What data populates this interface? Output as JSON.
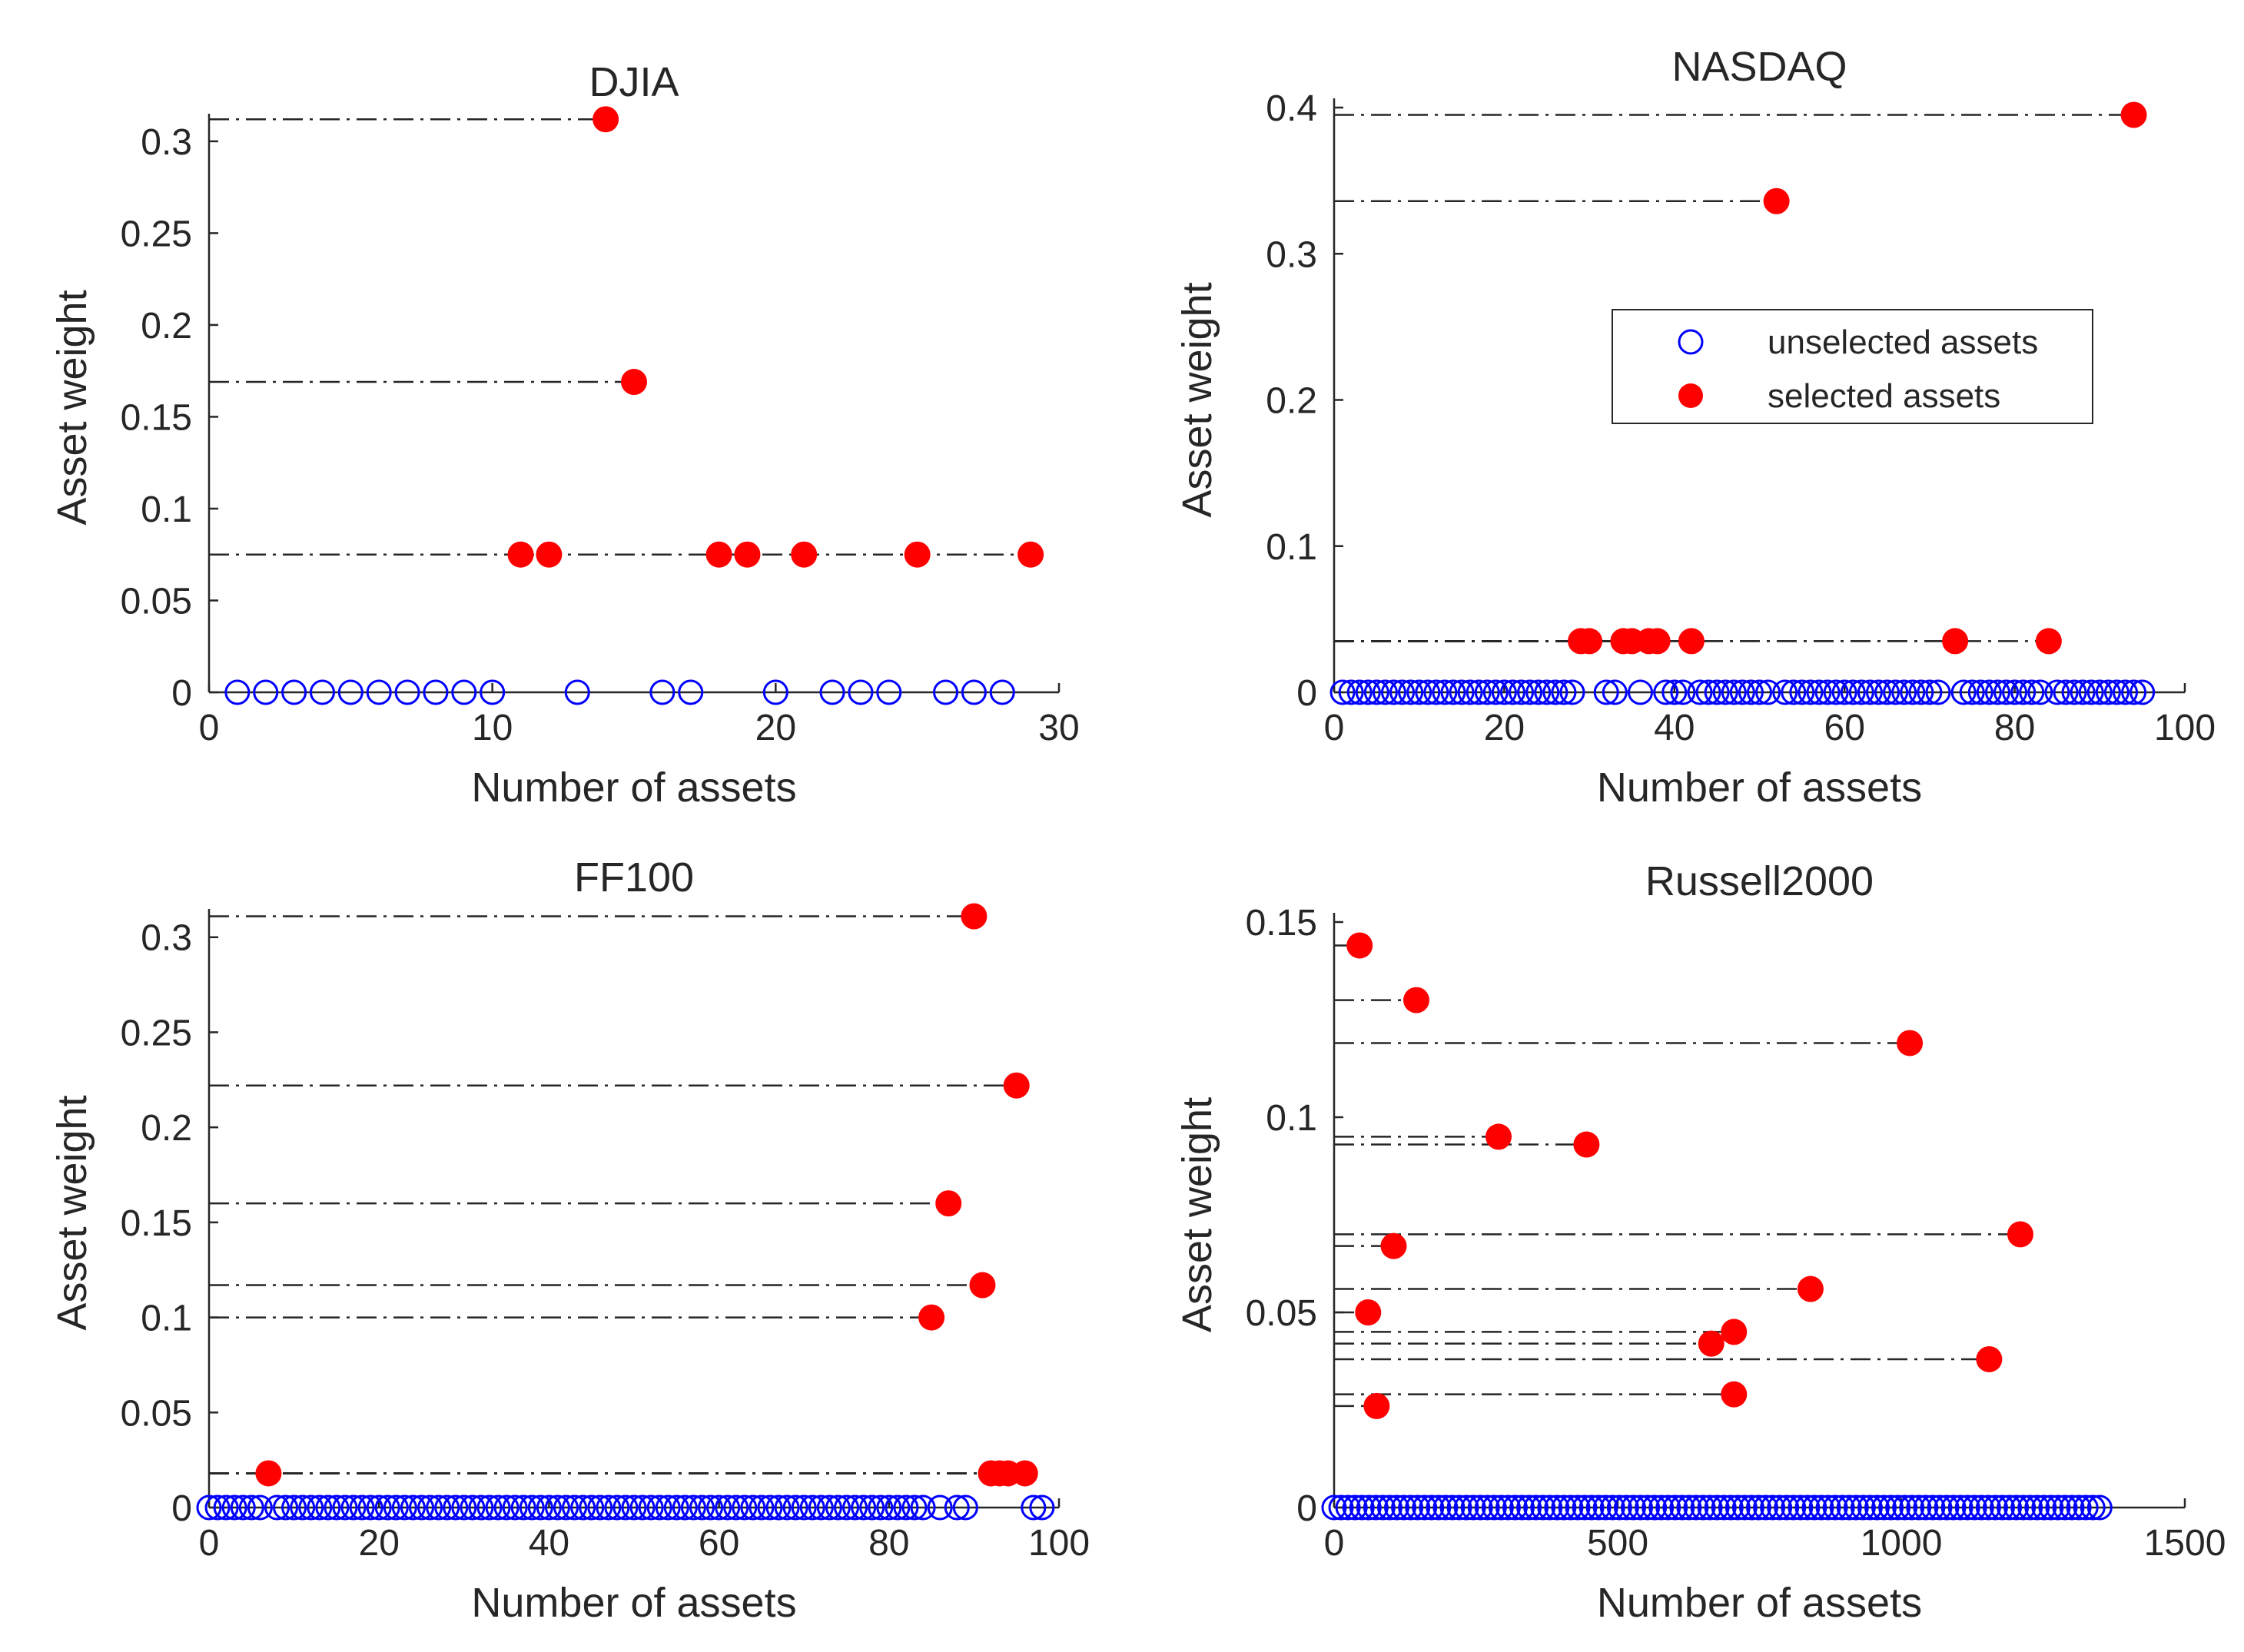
{
  "chart_data": [
    {
      "type": "scatter",
      "title": "DJIA",
      "xlabel": "Number of assets",
      "ylabel": "Asset weight",
      "xlim": [
        0,
        30
      ],
      "ylim": [
        0,
        0.31
      ],
      "xticks": [
        0,
        10,
        20,
        30
      ],
      "xtick_labels": [
        "0",
        "10",
        "20",
        "30"
      ],
      "yticks": [
        0,
        0.05,
        0.1,
        0.15,
        0.2,
        0.25,
        0.3
      ],
      "ytick_labels": [
        "0",
        "0.05",
        "0.1",
        "0.15",
        "0.2",
        "0.25",
        "0.3"
      ],
      "series": [
        {
          "name": "unselected assets",
          "x": [
            1,
            2,
            3,
            4,
            5,
            6,
            7,
            8,
            9,
            10,
            13,
            16,
            17,
            20,
            22,
            23,
            24,
            26,
            27,
            28
          ],
          "y": [
            0,
            0,
            0,
            0,
            0,
            0,
            0,
            0,
            0,
            0,
            0,
            0,
            0,
            0,
            0,
            0,
            0,
            0,
            0,
            0
          ]
        },
        {
          "name": "selected assets",
          "x": [
            11,
            12,
            14,
            15,
            18,
            19,
            21,
            25,
            29
          ],
          "y": [
            0.075,
            0.075,
            0.312,
            0.169,
            0.075,
            0.075,
            0.075,
            0.075,
            0.075
          ]
        }
      ]
    },
    {
      "type": "scatter",
      "title": "NASDAQ",
      "xlabel": "Number of assets",
      "ylabel": "Asset weight",
      "xlim": [
        0,
        100
      ],
      "ylim": [
        0,
        0.4
      ],
      "xticks": [
        0,
        20,
        40,
        60,
        80,
        100
      ],
      "xtick_labels": [
        "0",
        "20",
        "40",
        "60",
        "80",
        "100"
      ],
      "yticks": [
        0,
        0.1,
        0.2,
        0.3,
        0.4
      ],
      "ytick_labels": [
        "0",
        "0.1",
        "0.2",
        "0.3",
        "0.4"
      ],
      "legend": {
        "position": "center-right",
        "entries": [
          "unselected assets",
          "selected assets"
        ]
      },
      "series": [
        {
          "name": "unselected assets",
          "x": [
            1,
            2,
            3,
            4,
            5,
            6,
            7,
            8,
            9,
            10,
            11,
            12,
            13,
            14,
            15,
            16,
            17,
            18,
            19,
            20,
            21,
            22,
            23,
            24,
            25,
            26,
            27,
            28,
            32,
            33,
            36,
            39,
            40,
            41,
            43,
            44,
            45,
            46,
            47,
            48,
            49,
            50,
            51,
            53,
            54,
            55,
            56,
            57,
            58,
            59,
            60,
            61,
            62,
            63,
            64,
            65,
            66,
            67,
            68,
            69,
            70,
            71,
            74,
            75,
            76,
            77,
            78,
            79,
            80,
            81,
            82,
            83,
            85,
            86,
            87,
            88,
            89,
            90,
            91,
            92,
            93,
            94,
            95
          ],
          "y": [
            0,
            0,
            0,
            0,
            0,
            0,
            0,
            0,
            0,
            0,
            0,
            0,
            0,
            0,
            0,
            0,
            0,
            0,
            0,
            0,
            0,
            0,
            0,
            0,
            0,
            0,
            0,
            0,
            0,
            0,
            0,
            0,
            0,
            0,
            0,
            0,
            0,
            0,
            0,
            0,
            0,
            0,
            0,
            0,
            0,
            0,
            0,
            0,
            0,
            0,
            0,
            0,
            0,
            0,
            0,
            0,
            0,
            0,
            0,
            0,
            0,
            0,
            0,
            0,
            0,
            0,
            0,
            0,
            0,
            0,
            0,
            0,
            0,
            0,
            0,
            0,
            0,
            0,
            0,
            0,
            0,
            0,
            0
          ]
        },
        {
          "name": "selected assets",
          "x": [
            29,
            30,
            34,
            35,
            37,
            38,
            42,
            52,
            73,
            84,
            94
          ],
          "y": [
            0.035,
            0.035,
            0.035,
            0.035,
            0.035,
            0.035,
            0.035,
            0.336,
            0.035,
            0.035,
            0.395
          ]
        }
      ]
    },
    {
      "type": "scatter",
      "title": "FF100",
      "xlabel": "Number of assets",
      "ylabel": "Asset weight",
      "xlim": [
        0,
        100
      ],
      "ylim": [
        0,
        0.31
      ],
      "xticks": [
        0,
        20,
        40,
        60,
        80,
        100
      ],
      "xtick_labels": [
        "0",
        "20",
        "40",
        "60",
        "80",
        "100"
      ],
      "yticks": [
        0,
        0.05,
        0.1,
        0.15,
        0.2,
        0.25,
        0.3
      ],
      "ytick_labels": [
        "0",
        "0.05",
        "0.1",
        "0.15",
        "0.2",
        "0.25",
        "0.3"
      ],
      "series": [
        {
          "name": "unselected assets",
          "x": [
            0,
            1,
            2,
            3,
            4,
            5,
            6,
            8,
            9,
            10,
            11,
            12,
            13,
            14,
            15,
            16,
            17,
            18,
            19,
            20,
            21,
            22,
            23,
            24,
            25,
            26,
            27,
            28,
            29,
            30,
            31,
            32,
            33,
            34,
            35,
            36,
            37,
            38,
            39,
            40,
            41,
            42,
            43,
            44,
            45,
            46,
            47,
            48,
            49,
            50,
            51,
            52,
            53,
            54,
            55,
            56,
            57,
            58,
            59,
            60,
            61,
            62,
            63,
            64,
            65,
            66,
            67,
            68,
            69,
            70,
            71,
            72,
            73,
            74,
            75,
            76,
            77,
            78,
            79,
            80,
            81,
            82,
            83,
            84,
            86,
            88,
            89,
            97,
            98
          ],
          "y": [
            0,
            0,
            0,
            0,
            0,
            0,
            0,
            0,
            0,
            0,
            0,
            0,
            0,
            0,
            0,
            0,
            0,
            0,
            0,
            0,
            0,
            0,
            0,
            0,
            0,
            0,
            0,
            0,
            0,
            0,
            0,
            0,
            0,
            0,
            0,
            0,
            0,
            0,
            0,
            0,
            0,
            0,
            0,
            0,
            0,
            0,
            0,
            0,
            0,
            0,
            0,
            0,
            0,
            0,
            0,
            0,
            0,
            0,
            0,
            0,
            0,
            0,
            0,
            0,
            0,
            0,
            0,
            0,
            0,
            0,
            0,
            0,
            0,
            0,
            0,
            0,
            0,
            0,
            0,
            0,
            0,
            0,
            0,
            0,
            0,
            0,
            0,
            0,
            0
          ]
        },
        {
          "name": "selected assets",
          "x": [
            7,
            85,
            87,
            90,
            91,
            92,
            93,
            94,
            95,
            96
          ],
          "y": [
            0.018,
            0.1,
            0.16,
            0.311,
            0.117,
            0.018,
            0.018,
            0.018,
            0.222,
            0.018
          ]
        }
      ]
    },
    {
      "type": "scatter",
      "title": "Russell2000",
      "xlabel": "Number of assets",
      "ylabel": "Asset weight",
      "xlim": [
        0,
        1500
      ],
      "ylim": [
        0,
        0.15
      ],
      "xticks": [
        0,
        500,
        1000,
        1500
      ],
      "xtick_labels": [
        "0",
        "500",
        "1000",
        "1500"
      ],
      "yticks": [
        0,
        0.05,
        0.1,
        0.15
      ],
      "ytick_labels": [
        "0",
        "0.05",
        "0.1",
        "0.15"
      ],
      "series": [
        {
          "name": "unselected assets",
          "x_range": [
            0,
            1350
          ],
          "y": 0
        },
        {
          "name": "selected assets",
          "x": [
            45,
            60,
            75,
            105,
            145,
            290,
            445,
            665,
            705,
            705,
            840,
            1015,
            1155,
            1210
          ],
          "y": [
            0.144,
            0.05,
            0.026,
            0.067,
            0.13,
            0.095,
            0.093,
            0.042,
            0.045,
            0.029,
            0.056,
            0.119,
            0.038,
            0.07
          ]
        }
      ]
    }
  ]
}
